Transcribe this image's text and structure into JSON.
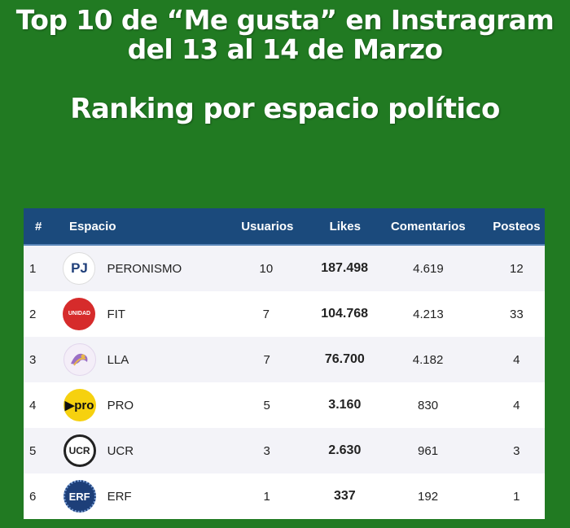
{
  "title": {
    "line1": "Top 10 de “Me gusta” en Instragram",
    "line2": "del 13 al 14 de Marzo",
    "subtitle": "Ranking por espacio político"
  },
  "table": {
    "headers": {
      "num": "#",
      "espacio": "Espacio",
      "usuarios": "Usuarios",
      "likes": "Likes",
      "comentarios": "Comentarios",
      "posteos": "Posteos"
    },
    "rows": [
      {
        "num": "1",
        "logo": "PJ",
        "logo_icon": "peronismo-logo",
        "espacio": "PERONISMO",
        "usuarios": "10",
        "likes": "187.498",
        "comentarios": "4.619",
        "posteos": "12"
      },
      {
        "num": "2",
        "logo": "UNIDAD",
        "logo_icon": "fit-logo",
        "espacio": "FIT",
        "usuarios": "7",
        "likes": "104.768",
        "comentarios": "4.213",
        "posteos": "33"
      },
      {
        "num": "3",
        "logo": "",
        "logo_icon": "lla-lion-logo",
        "espacio": "LLA",
        "usuarios": "7",
        "likes": "76.700",
        "comentarios": "4.182",
        "posteos": "4"
      },
      {
        "num": "4",
        "logo": "▶pro",
        "logo_icon": "pro-logo",
        "espacio": "PRO",
        "usuarios": "5",
        "likes": "3.160",
        "comentarios": "830",
        "posteos": "4"
      },
      {
        "num": "5",
        "logo": "UCR",
        "logo_icon": "ucr-logo",
        "espacio": "UCR",
        "usuarios": "3",
        "likes": "2.630",
        "comentarios": "961",
        "posteos": "3"
      },
      {
        "num": "6",
        "logo": "ERF",
        "logo_icon": "erf-logo",
        "espacio": "ERF",
        "usuarios": "1",
        "likes": "337",
        "comentarios": "192",
        "posteos": "1"
      }
    ]
  },
  "colors": {
    "background": "#217a22",
    "header": "#1b4a7c",
    "row_alt": "#f3f3f8"
  }
}
